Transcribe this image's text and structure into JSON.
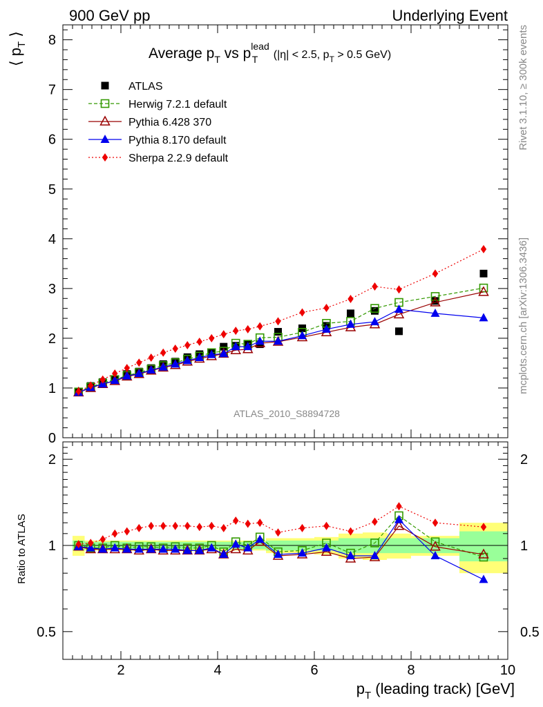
{
  "header": {
    "left": "900 GeV pp",
    "right": "Underlying Event"
  },
  "side_labels": {
    "rivet": "Rivet 3.1.10, ≥ 300k events",
    "mcplots": "mcplots.cern.ch [arXiv:1306.3436]"
  },
  "watermark": "ATLAS_2010_S8894728",
  "title": {
    "main": "Average p",
    "sub1": "T",
    "vs": " vs p",
    "sup": "lead",
    "sub2": "T",
    "cut1": " (|η| < 2.5, p",
    "cut_sub": "T",
    "cut2": " > 0.5 GeV)"
  },
  "colors": {
    "herwig": "#339900",
    "pythia6": "#990000",
    "pythia8": "#0000ee",
    "sherpa": "#ee0000",
    "band_inner": "#99ff99",
    "band_outer": "#ffff77"
  },
  "chart_data": [
    {
      "type": "scatter",
      "panel": "main",
      "ylabel": {
        "open": "⟨ p",
        "sub": "T",
        "close": " ⟩"
      },
      "ylim": [
        0,
        8.3
      ],
      "xlim": [
        0.8,
        10
      ],
      "y_ticks": [
        "0",
        "1",
        "2",
        "3",
        "4",
        "5",
        "6",
        "7",
        "8"
      ],
      "legend_placement": "top-left",
      "legend": [
        {
          "key": "atlas",
          "label": "ATLAS"
        },
        {
          "key": "herwig",
          "label": "Herwig 7.2.1 default"
        },
        {
          "key": "pythia6",
          "label": "Pythia 6.428 370"
        },
        {
          "key": "pythia8",
          "label": "Pythia 8.170 default"
        },
        {
          "key": "sherpa",
          "label": "Sherpa 2.2.9 default"
        }
      ],
      "x": [
        1.125,
        1.375,
        1.625,
        1.875,
        2.125,
        2.375,
        2.625,
        2.875,
        3.125,
        3.375,
        3.625,
        3.875,
        4.125,
        4.375,
        4.625,
        4.875,
        5.25,
        5.75,
        6.25,
        6.75,
        7.25,
        7.75,
        8.5,
        9.5
      ],
      "series": [
        {
          "name": "ATLAS",
          "key": "atlas",
          "values": [
            0.92,
            1.04,
            1.12,
            1.17,
            1.28,
            1.33,
            1.4,
            1.48,
            1.53,
            1.62,
            1.68,
            1.72,
            1.83,
            1.85,
            1.88,
            1.88,
            2.13,
            2.2,
            2.25,
            2.5,
            2.55,
            2.14,
            2.75,
            3.3
          ]
        },
        {
          "name": "Herwig 7.2.1 default",
          "key": "herwig",
          "values": [
            0.92,
            1.02,
            1.1,
            1.17,
            1.25,
            1.31,
            1.38,
            1.45,
            1.51,
            1.58,
            1.64,
            1.71,
            1.74,
            1.9,
            1.88,
            2.01,
            2.02,
            2.12,
            2.3,
            2.34,
            2.6,
            2.72,
            2.84,
            3.01
          ]
        },
        {
          "name": "Pythia 6.428 370",
          "key": "pythia6",
          "values": [
            0.91,
            1.0,
            1.08,
            1.14,
            1.23,
            1.28,
            1.35,
            1.41,
            1.46,
            1.53,
            1.59,
            1.64,
            1.69,
            1.76,
            1.78,
            1.9,
            1.93,
            2.02,
            2.12,
            2.22,
            2.28,
            2.48,
            2.72,
            2.93
          ]
        },
        {
          "name": "Pythia 8.170 default",
          "key": "pythia8",
          "values": [
            0.91,
            1.01,
            1.08,
            1.15,
            1.24,
            1.29,
            1.36,
            1.42,
            1.48,
            1.55,
            1.61,
            1.67,
            1.69,
            1.83,
            1.83,
            1.94,
            1.94,
            2.05,
            2.18,
            2.28,
            2.33,
            2.58,
            2.5,
            2.41
          ]
        },
        {
          "name": "Sherpa 2.2.9 default",
          "key": "sherpa",
          "values": [
            0.93,
            1.05,
            1.17,
            1.29,
            1.4,
            1.51,
            1.61,
            1.71,
            1.79,
            1.86,
            1.93,
            2.0,
            2.08,
            2.15,
            2.18,
            2.24,
            2.34,
            2.52,
            2.61,
            2.79,
            3.04,
            2.98,
            3.3,
            3.79
          ]
        }
      ]
    },
    {
      "type": "scatter",
      "panel": "ratio",
      "ylabel": "Ratio to ATLAS",
      "ylim": [
        0.4,
        2.3
      ],
      "y_scale": "log",
      "y_ticks": [
        {
          "value": 0.5,
          "label": "0.5"
        },
        {
          "value": 1,
          "label": "1"
        },
        {
          "value": 2,
          "label": "2"
        }
      ],
      "xlabel": {
        "main": "p",
        "sub": "T",
        "rest": " (leading track) [GeV]"
      },
      "x_ticks": [
        "2",
        "4",
        "6",
        "8",
        "10"
      ],
      "x_edges": [
        1.0,
        1.25,
        1.5,
        1.75,
        2.0,
        2.25,
        2.5,
        2.75,
        3.0,
        3.25,
        3.5,
        3.75,
        4.0,
        4.25,
        4.5,
        4.75,
        5.0,
        5.5,
        6.0,
        6.5,
        7.0,
        7.5,
        8.0,
        9.0,
        10.0
      ],
      "band_inner_halfwidth": [
        0.04,
        0.03,
        0.03,
        0.03,
        0.03,
        0.03,
        0.03,
        0.03,
        0.03,
        0.03,
        0.03,
        0.03,
        0.03,
        0.03,
        0.03,
        0.03,
        0.04,
        0.04,
        0.04,
        0.06,
        0.06,
        0.06,
        0.06,
        0.12
      ],
      "band_outer_halfwidth": [
        0.08,
        0.04,
        0.04,
        0.04,
        0.04,
        0.04,
        0.04,
        0.04,
        0.04,
        0.04,
        0.04,
        0.04,
        0.04,
        0.04,
        0.04,
        0.04,
        0.06,
        0.06,
        0.07,
        0.1,
        0.11,
        0.1,
        0.08,
        0.2
      ],
      "series": [
        {
          "name": "Herwig 7.2.1 default",
          "key": "herwig",
          "values": [
            1.0,
            0.98,
            0.98,
            1.0,
            0.98,
            0.99,
            0.99,
            0.98,
            0.99,
            0.98,
            0.98,
            1.0,
            0.95,
            1.03,
            1.0,
            1.07,
            0.95,
            0.96,
            1.02,
            0.94,
            1.02,
            1.27,
            1.03,
            0.91
          ]
        },
        {
          "name": "Pythia 6.428 370",
          "key": "pythia6",
          "values": [
            0.99,
            0.97,
            0.97,
            0.97,
            0.97,
            0.96,
            0.97,
            0.96,
            0.96,
            0.96,
            0.96,
            0.97,
            0.93,
            0.97,
            0.96,
            1.03,
            0.92,
            0.93,
            0.95,
            0.9,
            0.91,
            1.17,
            0.99,
            0.93
          ]
        },
        {
          "name": "Pythia 8.170 default",
          "key": "pythia8",
          "values": [
            0.99,
            0.98,
            0.97,
            0.98,
            0.97,
            0.97,
            0.97,
            0.97,
            0.97,
            0.96,
            0.96,
            0.98,
            0.93,
            1.01,
            0.98,
            1.05,
            0.93,
            0.94,
            0.98,
            0.92,
            0.92,
            1.23,
            0.92,
            0.76
          ]
        },
        {
          "name": "Sherpa 2.2.9 default",
          "key": "sherpa",
          "values": [
            1.01,
            1.02,
            1.05,
            1.1,
            1.12,
            1.15,
            1.17,
            1.17,
            1.17,
            1.17,
            1.16,
            1.17,
            1.15,
            1.22,
            1.19,
            1.2,
            1.11,
            1.15,
            1.17,
            1.12,
            1.21,
            1.37,
            1.2,
            1.16
          ]
        }
      ]
    }
  ]
}
